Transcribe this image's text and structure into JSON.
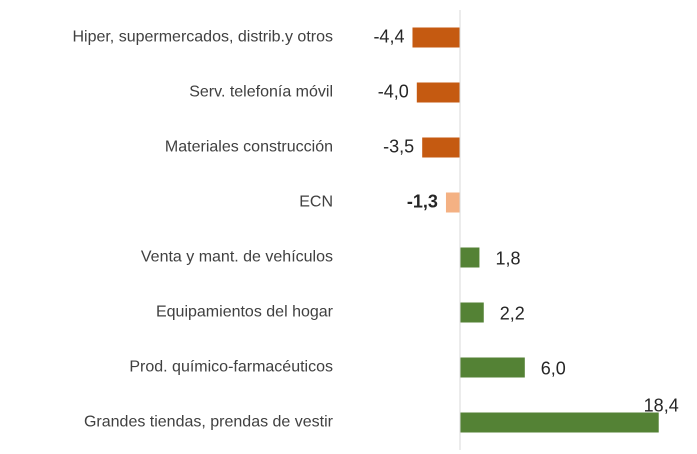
{
  "chart_data": {
    "type": "barh",
    "categories": [
      "Hiper, supermercados, distrib.y otros",
      "Serv. telefonía móvil",
      "Materiales construcción",
      "ECN",
      "Venta y mant. de vehículos",
      "Equipamientos del hogar",
      "Prod. químico-farmacéuticos",
      "Grandes tiendas, prendas de vestir"
    ],
    "values": [
      -4.4,
      -4.0,
      -3.5,
      -1.3,
      1.8,
      2.2,
      6.0,
      18.4
    ],
    "value_labels": [
      "-4,4",
      "-4,0",
      "-3,5",
      "-1,3",
      "1,8",
      "2,2",
      "6,0",
      "18,4"
    ],
    "colors": [
      "#c55a11",
      "#c55a11",
      "#c55a11",
      "#f4b183",
      "#548235",
      "#548235",
      "#548235",
      "#548235"
    ],
    "bold": [
      false,
      false,
      false,
      true,
      false,
      false,
      false,
      false
    ],
    "xlim": [
      -5,
      20
    ]
  }
}
